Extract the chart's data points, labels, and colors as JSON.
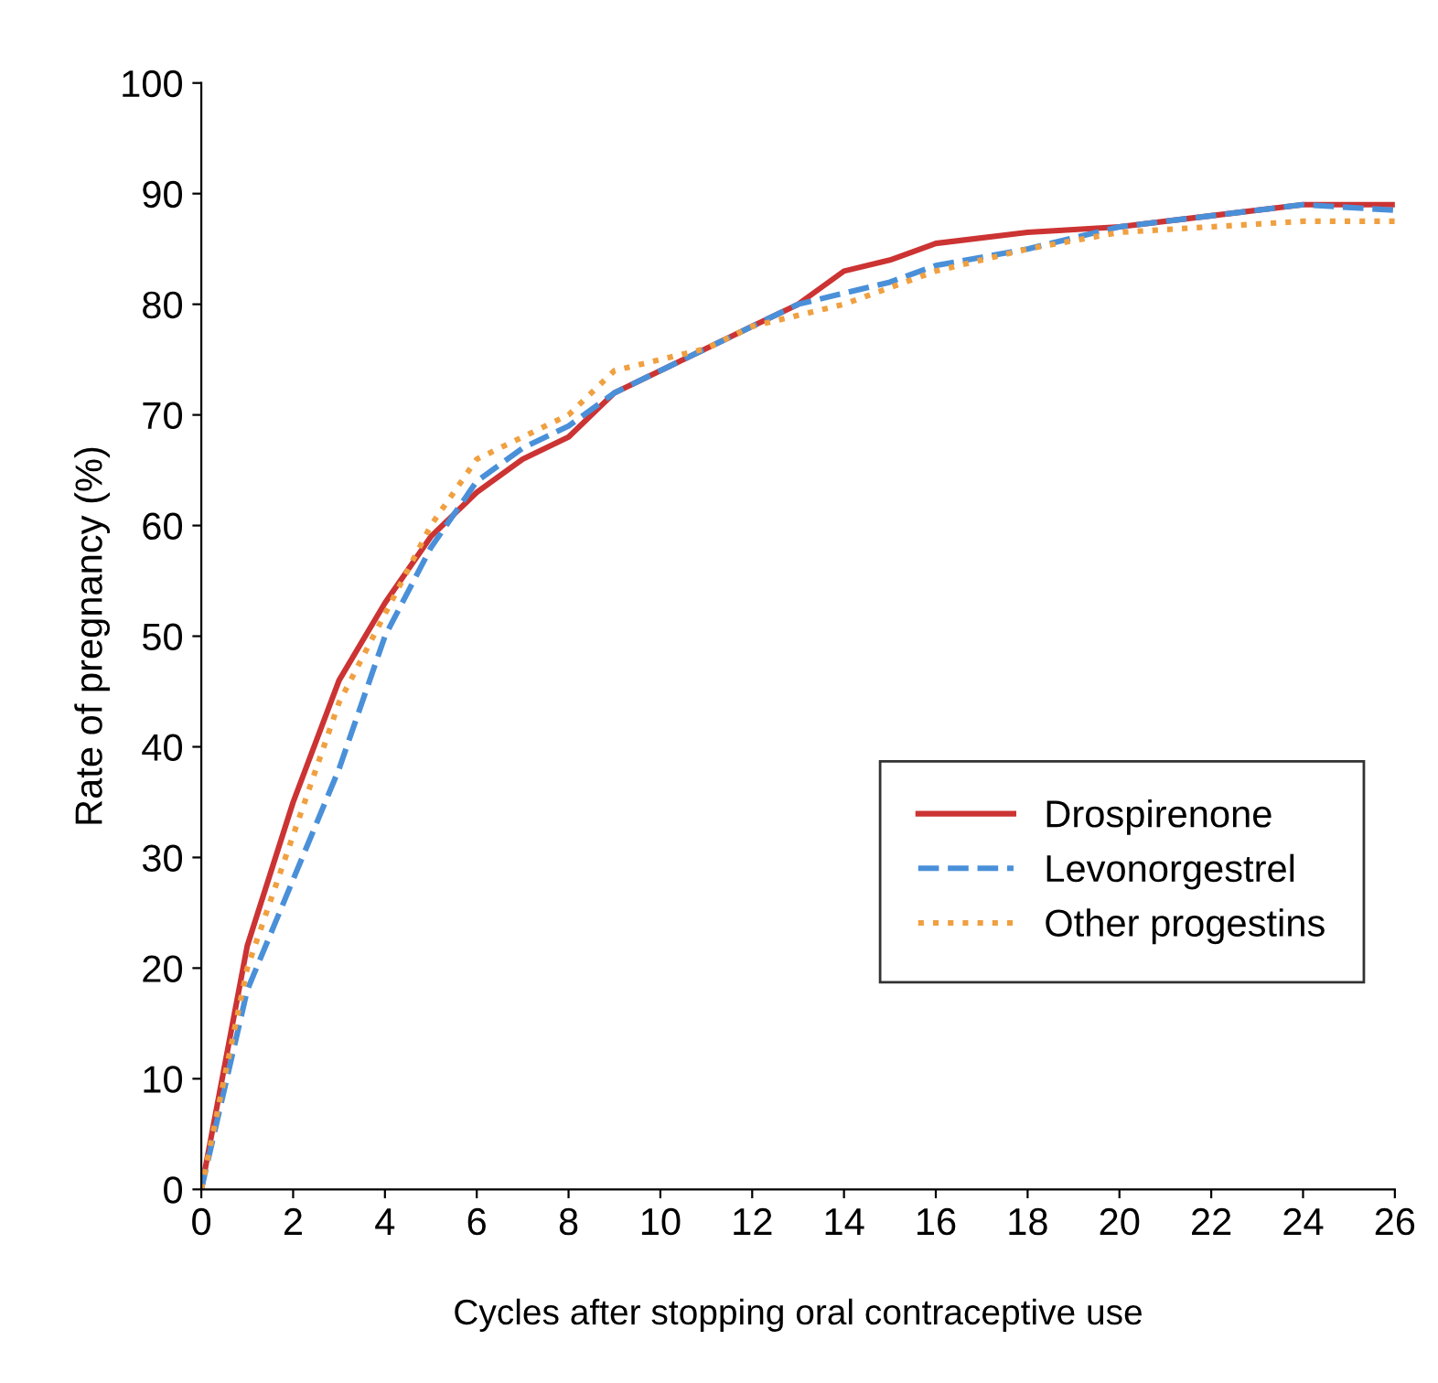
{
  "chart_data": {
    "type": "line",
    "xlabel": "Cycles after stopping oral contraceptive use",
    "ylabel": "Rate of pregnancy (%)",
    "xlim": [
      0,
      26
    ],
    "xticks": [
      0,
      2,
      4,
      6,
      8,
      10,
      12,
      14,
      16,
      18,
      20,
      22,
      24,
      26
    ],
    "ylim": [
      0,
      100
    ],
    "yticks": [
      0,
      10,
      20,
      30,
      40,
      50,
      60,
      70,
      80,
      90,
      100
    ],
    "grid": false,
    "legend": "lower right",
    "marker": "none",
    "series": [
      {
        "name": "Drospirenone",
        "color": "#cc3333",
        "line_style": "solid",
        "x": [
          0,
          1,
          2,
          3,
          4,
          5,
          6,
          7,
          8,
          9,
          10,
          11,
          12,
          13,
          14,
          15,
          16,
          18,
          20,
          22,
          24,
          26
        ],
        "values": [
          0,
          22,
          35,
          46,
          53,
          59,
          63,
          66,
          68,
          72,
          74,
          76,
          78,
          80,
          83,
          84,
          85.5,
          86.5,
          87,
          88,
          89,
          89
        ]
      },
      {
        "name": "Levonorgestrel",
        "color": "#4a90d9",
        "line_style": "dashed",
        "x": [
          0,
          1,
          2,
          3,
          4,
          5,
          6,
          7,
          8,
          9,
          10,
          11,
          12,
          13,
          14,
          15,
          16,
          18,
          20,
          22,
          24,
          26
        ],
        "values": [
          0,
          18,
          28,
          38,
          50,
          58,
          64,
          67,
          69,
          72,
          74,
          76,
          78,
          80,
          81,
          82,
          83.5,
          85,
          87,
          88,
          89,
          88.5
        ]
      },
      {
        "name": "Other progestins",
        "color": "#f0a040",
        "line_style": "dotted",
        "x": [
          0,
          1,
          2,
          3,
          4,
          5,
          6,
          7,
          8,
          9,
          10,
          11,
          12,
          13,
          14,
          16,
          18,
          20,
          22,
          24,
          26
        ],
        "values": [
          0,
          20,
          32,
          44,
          52,
          60,
          66,
          68,
          70,
          74,
          75,
          76,
          78,
          79,
          80,
          83,
          85,
          86.5,
          87,
          87.5,
          87.5
        ]
      }
    ]
  }
}
